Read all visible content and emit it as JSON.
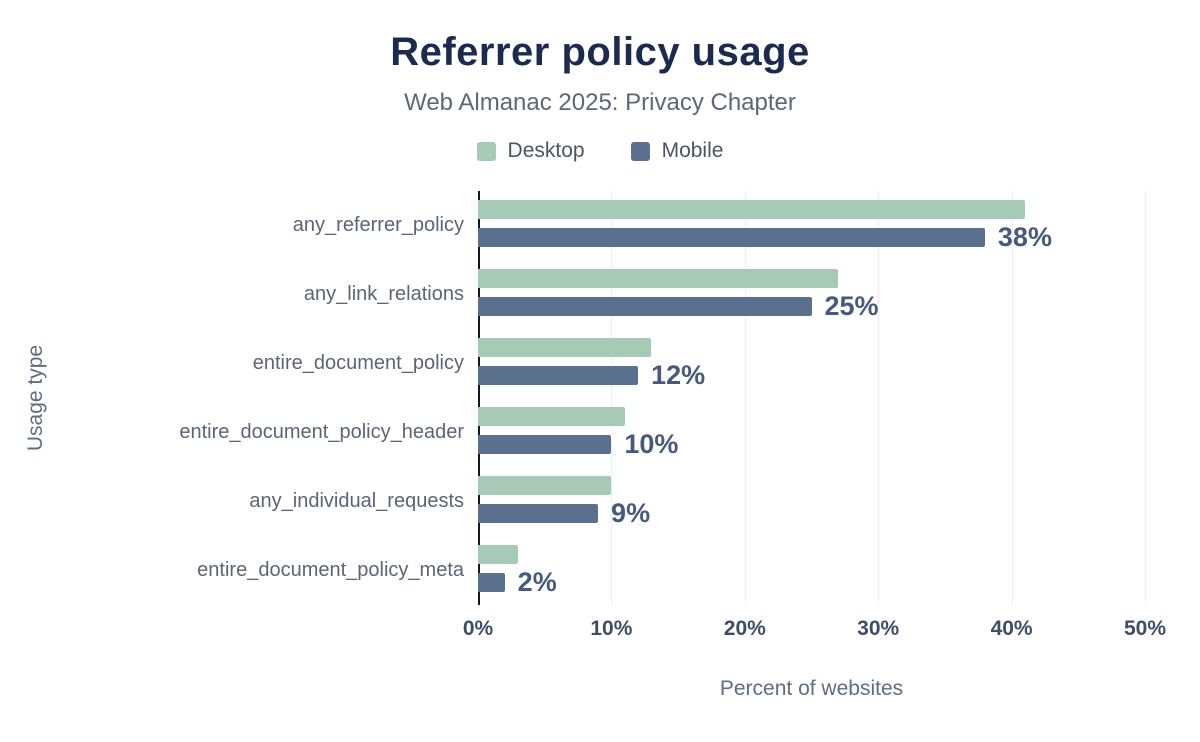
{
  "title": "Referrer policy usage",
  "subtitle": "Web Almanac 2025: Privacy Chapter",
  "legend": [
    {
      "label": "Desktop",
      "color": "#a6cab6"
    },
    {
      "label": "Mobile",
      "color": "#5b6f8f"
    }
  ],
  "chart_data": {
    "type": "bar",
    "orientation": "horizontal",
    "title": "Referrer policy usage",
    "subtitle": "Web Almanac 2025: Privacy Chapter",
    "categories": [
      "any_referrer_policy",
      "any_link_relations",
      "entire_document_policy",
      "entire_document_policy_header",
      "any_individual_requests",
      "entire_document_policy_meta"
    ],
    "series": [
      {
        "name": "Desktop",
        "color": "#a6cab6",
        "values": [
          41,
          27,
          13,
          11,
          10,
          3
        ]
      },
      {
        "name": "Mobile",
        "color": "#5b6f8f",
        "values": [
          38,
          25,
          12,
          10,
          9,
          2
        ]
      }
    ],
    "annotations": [
      "38%",
      "25%",
      "12%",
      "10%",
      "9%",
      "2%"
    ],
    "xlabel": "Percent of websites",
    "ylabel": "Usage type",
    "xlim": [
      0,
      50
    ],
    "xticks": [
      "0%",
      "10%",
      "20%",
      "30%",
      "40%",
      "50%"
    ],
    "grid": true,
    "legend_position": "top"
  }
}
